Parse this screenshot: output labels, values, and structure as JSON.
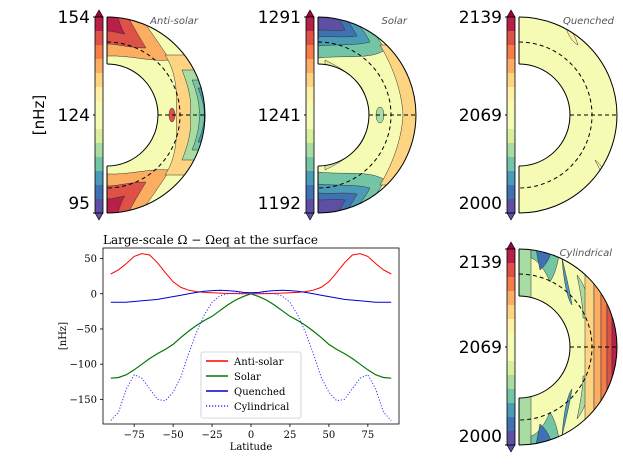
{
  "panels": [
    {
      "title": "Anti-solar",
      "ticks": [
        "154",
        "124",
        "95"
      ]
    },
    {
      "title": "Solar",
      "ticks": [
        "1291",
        "1241",
        "1192"
      ]
    },
    {
      "title": "Quenched",
      "ticks": [
        "2139",
        "2069",
        "2000"
      ]
    },
    {
      "title": "Cylindrical",
      "ticks": [
        "2139",
        "2069",
        "2000"
      ]
    }
  ],
  "unit_label": "[nHz]",
  "colormap": [
    "#5e4fa2",
    "#3f72b2",
    "#4a9bb5",
    "#74c5a5",
    "#a8dca3",
    "#d9ef9b",
    "#f5fbb2",
    "#fff0a6",
    "#fdd482",
    "#fbad62",
    "#f57d4a",
    "#de5147",
    "#b92048",
    "#9e0142"
  ],
  "chart_data": {
    "type": "line",
    "title": "Large-scale Ω − Ωeq at the surface",
    "xlabel": "Latitude",
    "ylabel": "[nHz]",
    "xlim": [
      -95,
      95
    ],
    "ylim": [
      -185,
      65
    ],
    "xticks": [
      -75,
      -50,
      -25,
      0,
      25,
      50,
      75
    ],
    "yticks": [
      50,
      0,
      -50,
      -100,
      -150
    ],
    "x": [
      -90,
      -85,
      -80,
      -75,
      -70,
      -65,
      -60,
      -55,
      -50,
      -45,
      -40,
      -35,
      -30,
      -25,
      -20,
      -15,
      -10,
      -5,
      0,
      5,
      10,
      15,
      20,
      25,
      30,
      35,
      40,
      45,
      50,
      55,
      60,
      65,
      70,
      75,
      80,
      85,
      90
    ],
    "series": [
      {
        "name": "Anti-solar",
        "color": "#ff0000",
        "dash": "solid",
        "width": 1,
        "values": [
          28,
          34,
          43,
          53,
          57,
          55,
          44,
          30,
          17,
          9,
          5,
          3,
          2,
          1.5,
          1,
          0.5,
          0.2,
          0,
          0,
          0,
          0.2,
          0.5,
          1,
          1.5,
          2,
          3,
          5,
          9,
          17,
          30,
          44,
          55,
          57,
          53,
          43,
          34,
          28
        ]
      },
      {
        "name": "Solar",
        "color": "#007700",
        "dash": "solid",
        "width": 1.2,
        "values": [
          -120,
          -119,
          -115,
          -108,
          -100,
          -92,
          -85,
          -79,
          -72,
          -62,
          -53,
          -45,
          -38,
          -32,
          -24,
          -16,
          -9,
          -4,
          0,
          -4,
          -9,
          -16,
          -24,
          -32,
          -38,
          -45,
          -53,
          -62,
          -72,
          -79,
          -85,
          -92,
          -100,
          -108,
          -115,
          -119,
          -120
        ]
      },
      {
        "name": "Quenched",
        "color": "#0000cc",
        "dash": "solid",
        "width": 1,
        "values": [
          -12,
          -12,
          -12,
          -11,
          -10,
          -9,
          -8,
          -6,
          -4,
          -2,
          0,
          2,
          3.5,
          4.5,
          5,
          4.5,
          3.5,
          2,
          1.5,
          2,
          3.5,
          4.5,
          5,
          4.5,
          3.5,
          2,
          0,
          -2,
          -4,
          -6,
          -8,
          -9,
          -10,
          -11,
          -12,
          -12,
          -12
        ]
      },
      {
        "name": "Cylindrical",
        "color": "#3333ff",
        "dash": "dotted",
        "width": 1,
        "values": [
          -180,
          -168,
          -135,
          -115,
          -120,
          -135,
          -150,
          -152,
          -140,
          -118,
          -85,
          -55,
          -30,
          -12,
          -3,
          0,
          1,
          1,
          0,
          1,
          1,
          0,
          -3,
          -12,
          -30,
          -55,
          -85,
          -118,
          -140,
          -152,
          -150,
          -135,
          -120,
          -115,
          -135,
          -168,
          -180
        ]
      }
    ],
    "legend": "lower-center"
  }
}
